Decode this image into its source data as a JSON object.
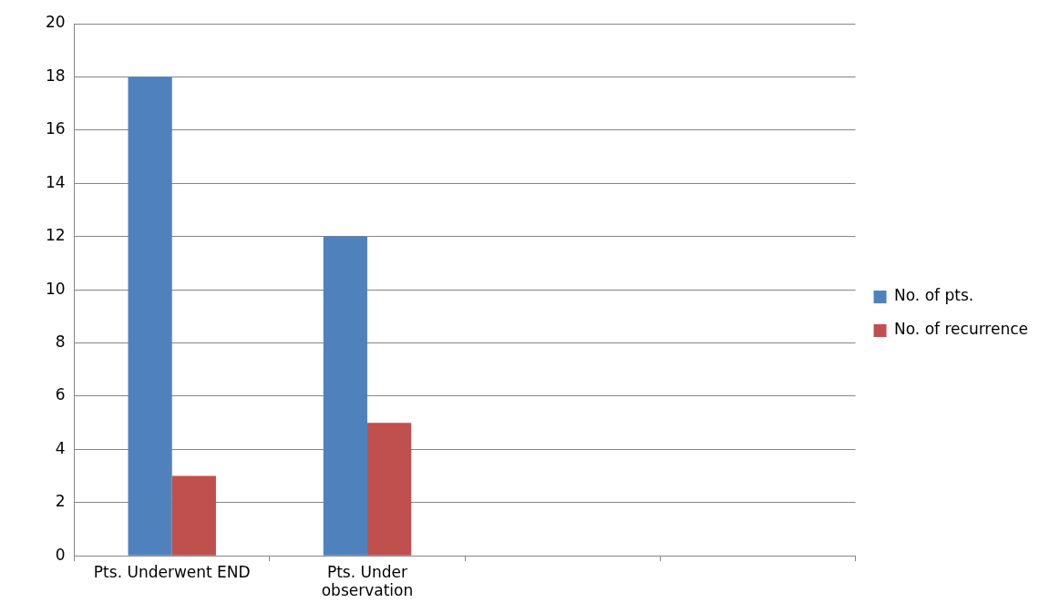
{
  "chart_data": {
    "type": "bar",
    "categories": [
      "Pts. Underwent END",
      "Pts. Under observation",
      null,
      null
    ],
    "series": [
      {
        "name": "No. of pts.",
        "color": "#4f81bd",
        "values": [
          18,
          12,
          null,
          null
        ]
      },
      {
        "name": "No. of recurrence",
        "color": "#c0504d",
        "values": [
          3,
          5,
          null,
          null
        ]
      }
    ],
    "ylim": [
      0,
      20
    ],
    "yticks": [
      0,
      2,
      4,
      6,
      8,
      10,
      12,
      14,
      16,
      18,
      20
    ],
    "grid": "y",
    "legend": "right"
  }
}
